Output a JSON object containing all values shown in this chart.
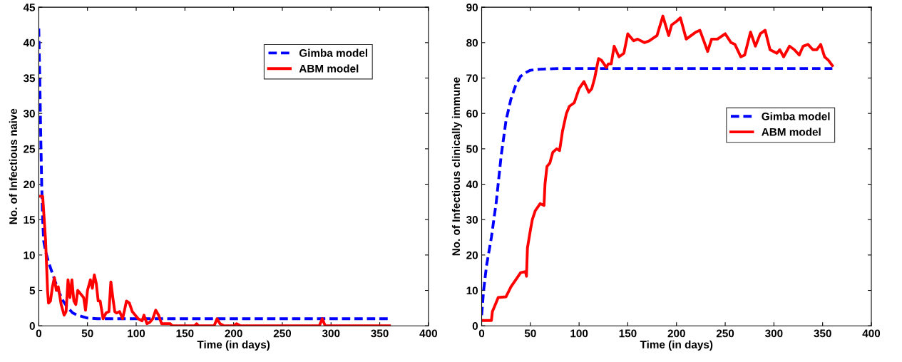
{
  "chart_data": [
    {
      "type": "line",
      "xlabel": "Time (in days)",
      "ylabel": "No. of Infectious naive",
      "xlim": [
        0,
        400
      ],
      "xticks": [
        0,
        50,
        100,
        150,
        200,
        250,
        300,
        350,
        400
      ],
      "ylim": [
        0,
        45
      ],
      "yticks": [
        0,
        5,
        10,
        15,
        20,
        25,
        30,
        35,
        40,
        45
      ],
      "grid": false,
      "legend": "top right",
      "series": [
        {
          "name": "Gimba model",
          "color": "#0000ff",
          "line_style": "dashed",
          "x": [
            0,
            1,
            2,
            3,
            4,
            5,
            7,
            10,
            15,
            20,
            25,
            30,
            35,
            40,
            50,
            60,
            360
          ],
          "values": [
            42,
            35,
            27,
            20,
            15,
            12,
            10.5,
            9,
            7,
            5,
            3.5,
            2.5,
            1.8,
            1.5,
            1.1,
            1,
            1
          ]
        },
        {
          "name": "ABM model",
          "color": "#ff0000",
          "line_style": "solid",
          "x": [
            0,
            4,
            7,
            9,
            10,
            12,
            14,
            16,
            18,
            20,
            23,
            26,
            28,
            30,
            32,
            34,
            36,
            38,
            40,
            43,
            46,
            48,
            50,
            53,
            55,
            57,
            59,
            61,
            63,
            66,
            69,
            72,
            74,
            76,
            78,
            80,
            83,
            86,
            88,
            90,
            93,
            96,
            99,
            102,
            106,
            108,
            111,
            114,
            117,
            120,
            123,
            126,
            135,
            137,
            160,
            162,
            164,
            180,
            183,
            186,
            190,
            200,
            203,
            207,
            288,
            291,
            294,
            360
          ],
          "values": [
            18.3,
            18.3,
            12,
            5,
            3.2,
            3.5,
            5.5,
            6.8,
            5,
            5.5,
            3,
            1.5,
            2,
            6.5,
            4,
            6.5,
            3.5,
            3,
            5,
            4.5,
            4,
            2.2,
            5,
            6.5,
            5.3,
            7.2,
            6,
            3.5,
            3.5,
            1,
            1.8,
            2,
            6.2,
            4,
            2,
            1.8,
            2,
            1,
            2.2,
            3.5,
            3.2,
            2,
            1.5,
            1,
            0.7,
            1.5,
            0.3,
            0.5,
            1,
            2.2,
            1.5,
            0.3,
            0.3,
            0,
            0,
            0.3,
            0,
            0,
            1,
            0.3,
            0,
            0,
            0.3,
            0,
            0,
            1,
            0,
            0
          ]
        }
      ]
    },
    {
      "type": "line",
      "xlabel": "Time (in days)",
      "ylabel": "No. of Infectious clinically immune",
      "xlim": [
        0,
        400
      ],
      "xticks": [
        0,
        50,
        100,
        150,
        200,
        250,
        300,
        350,
        400
      ],
      "ylim": [
        0,
        90
      ],
      "yticks": [
        0,
        10,
        20,
        30,
        40,
        50,
        60,
        70,
        80,
        90
      ],
      "grid": false,
      "legend": "right",
      "series": [
        {
          "name": "Gimba model",
          "color": "#0000ff",
          "line_style": "dashed",
          "x": [
            0,
            2,
            5,
            10,
            15,
            20,
            25,
            30,
            35,
            40,
            45,
            50,
            60,
            80,
            360
          ],
          "values": [
            3,
            10,
            17,
            25,
            35,
            48,
            58,
            64,
            68,
            70.5,
            71.5,
            72.2,
            72.5,
            72.7,
            72.7
          ]
        },
        {
          "name": "ABM model",
          "color": "#ff0000",
          "line_style": "solid",
          "x": [
            0,
            10,
            11,
            14,
            17,
            25,
            30,
            35,
            40,
            45,
            46,
            47,
            50,
            52,
            55,
            60,
            64,
            65,
            67,
            70,
            73,
            77,
            80,
            83,
            87,
            90,
            95,
            100,
            105,
            110,
            113,
            116,
            120,
            123,
            128,
            130,
            133,
            136,
            141,
            146,
            150,
            156,
            160,
            167,
            172,
            180,
            186,
            192,
            195,
            200,
            204,
            210,
            220,
            224,
            232,
            236,
            242,
            250,
            256,
            260,
            266,
            270,
            276,
            281,
            286,
            291,
            296,
            303,
            306,
            310,
            316,
            321,
            326,
            330,
            335,
            340,
            344,
            348,
            352,
            356,
            360
          ],
          "values": [
            1.5,
            1.5,
            4,
            6,
            8,
            8.2,
            11,
            13,
            15,
            15.3,
            14,
            22,
            27,
            30,
            32.5,
            34.5,
            34,
            40,
            45,
            46,
            49,
            50,
            49.5,
            55,
            60,
            62,
            63,
            67,
            69,
            66,
            67,
            70,
            75.5,
            75,
            73,
            74,
            74,
            79,
            76,
            77,
            82.5,
            80.5,
            81,
            80,
            80.5,
            82,
            87.5,
            82,
            85,
            86,
            87,
            81,
            83,
            83.5,
            77.5,
            81,
            81,
            82.5,
            80,
            79.5,
            76,
            76.5,
            83,
            79,
            82.5,
            83.5,
            78,
            77,
            78,
            76,
            79,
            78,
            76.5,
            79,
            79.5,
            78,
            78,
            79.5,
            76,
            75,
            73.5
          ]
        }
      ]
    }
  ]
}
